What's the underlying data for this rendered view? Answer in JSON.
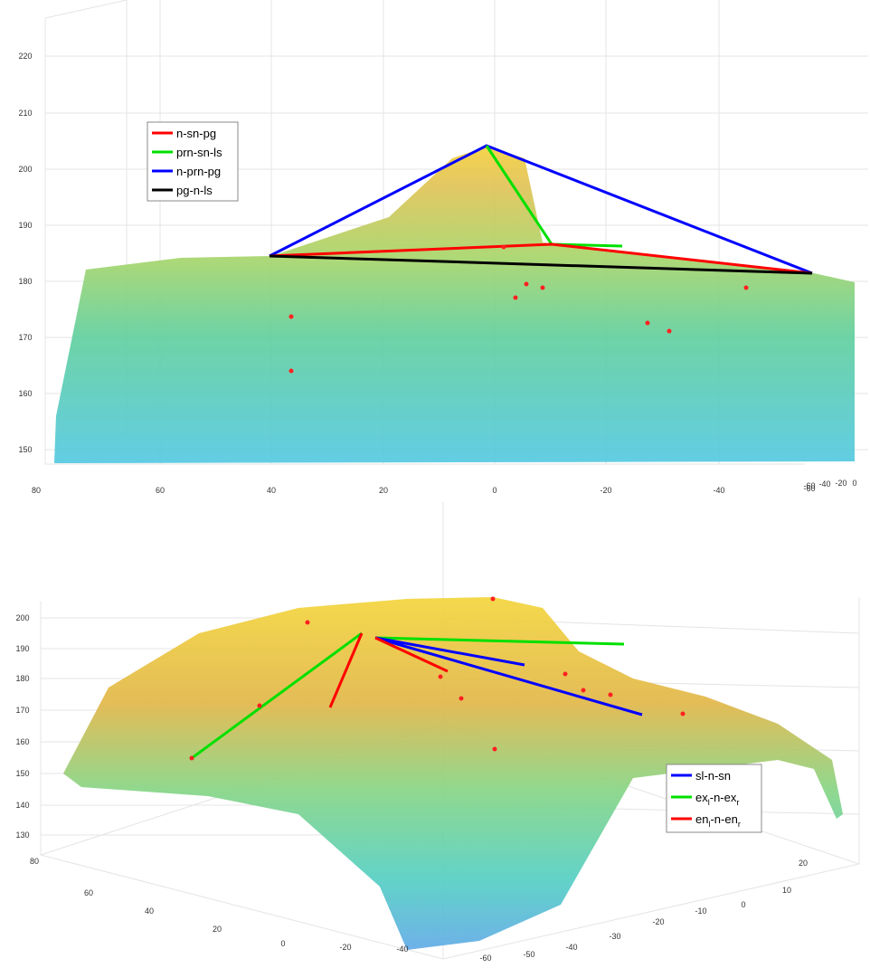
{
  "panels": [
    {
      "zticks": [
        "220",
        "210",
        "200",
        "190",
        "180",
        "170",
        "160",
        "150"
      ],
      "xticks": [
        "80",
        "60",
        "40",
        "20",
        "0",
        "-20",
        "-40",
        "-60"
      ],
      "yticks": [
        "-60",
        "-40",
        "-20",
        "0"
      ],
      "legend": [
        {
          "label_parts": [
            "n-sn-pg"
          ],
          "color": "#ff0000"
        },
        {
          "label_parts": [
            "prn-sn-ls"
          ],
          "color": "#00e000"
        },
        {
          "label_parts": [
            "n-prn-pg"
          ],
          "color": "#0000ff"
        },
        {
          "label_parts": [
            "pg-n-ls"
          ],
          "color": "#000000"
        }
      ]
    },
    {
      "zticks": [
        "200",
        "190",
        "180",
        "170",
        "160",
        "150",
        "140",
        "130"
      ],
      "xticks": [
        "80",
        "60",
        "40",
        "20",
        "0",
        "-20",
        "-40"
      ],
      "yticks": [
        "20",
        "10",
        "0",
        "-10",
        "-20",
        "-30",
        "-40",
        "-50",
        "-60"
      ],
      "legend": [
        {
          "label_parts": [
            "sl-n-sn"
          ],
          "color": "#0000ff"
        },
        {
          "label_parts": [
            "ex",
            "l",
            "-n-ex",
            "r"
          ],
          "color": "#00e000"
        },
        {
          "label_parts": [
            "en",
            "l",
            "-n-en",
            "r"
          ],
          "color": "#ff0000"
        }
      ]
    }
  ]
}
